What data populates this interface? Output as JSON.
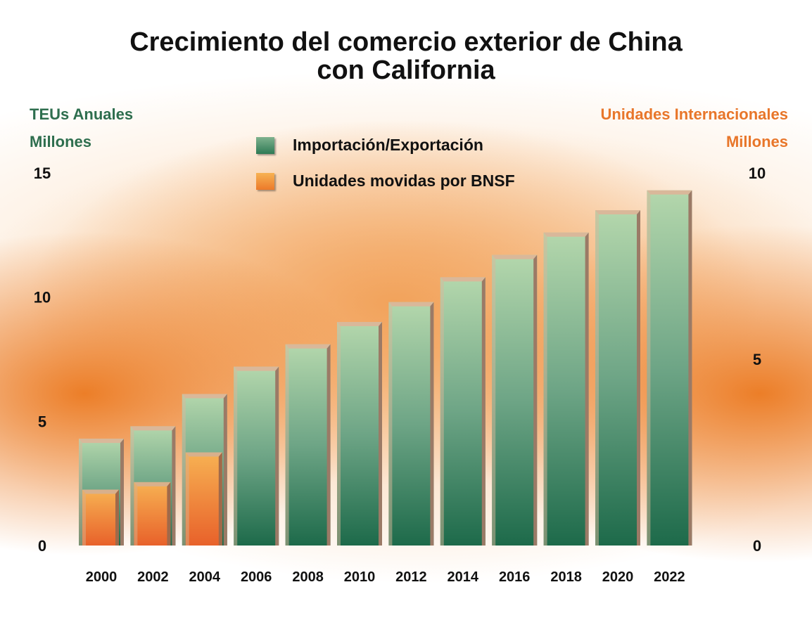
{
  "chart_data": {
    "type": "bar",
    "title": [
      "Crecimiento del comercio exterior de China",
      "con California"
    ],
    "left_axis": {
      "label": [
        "TEUs Anuales",
        "Millones"
      ],
      "ylim": [
        0,
        15
      ],
      "ticks": [
        "0",
        "5",
        "10",
        "15"
      ]
    },
    "right_axis": {
      "label": [
        "Unidades Internacionales",
        "Millones"
      ],
      "ylim": [
        0,
        10
      ],
      "ticks": [
        "0",
        "5",
        "10"
      ]
    },
    "categories": [
      "2000",
      "2002",
      "2004",
      "2006",
      "2008",
      "2010",
      "2012",
      "2014",
      "2016",
      "2018",
      "2020",
      "2022"
    ],
    "series": [
      {
        "name": "Importación/Exportación",
        "axis": "left",
        "color": "#2e7a55",
        "values": [
          4.3,
          4.8,
          6.1,
          7.2,
          8.1,
          9.0,
          9.8,
          10.8,
          11.7,
          12.6,
          13.5,
          14.3
        ]
      },
      {
        "name": "Unidades movidas por BNSF",
        "axis": "right",
        "color": "#ec7a2a",
        "values": [
          1.5,
          1.7,
          2.5,
          null,
          null,
          null,
          null,
          null,
          null,
          null,
          null,
          null
        ]
      }
    ],
    "legend": "top-center",
    "grid": false
  }
}
